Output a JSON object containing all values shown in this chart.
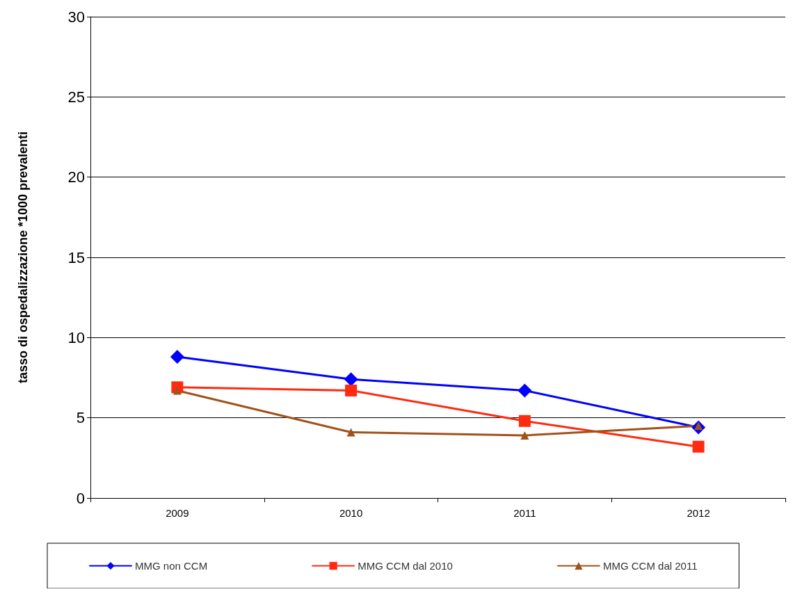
{
  "chart_data": {
    "type": "line",
    "ylabel": "tasso di ospedalizzazione *1000 prevalenti",
    "categories": [
      "2009",
      "2010",
      "2011",
      "2012"
    ],
    "series": [
      {
        "name": "MMG non CCM",
        "color": "#0000ff",
        "marker": "diamond",
        "values": [
          8.8,
          7.4,
          6.7,
          4.4
        ]
      },
      {
        "name": "MMG CCM dal 2010",
        "color": "#ff2a10",
        "marker": "square",
        "values": [
          6.9,
          6.7,
          4.8,
          3.2
        ]
      },
      {
        "name": "MMG CCM dal 2011",
        "color": "#a0521a",
        "marker": "triangle",
        "values": [
          6.7,
          4.1,
          3.9,
          4.5
        ]
      }
    ],
    "ylim": [
      0,
      30
    ],
    "yticks": [
      0,
      5,
      10,
      15,
      20,
      25,
      30
    ],
    "grid": "y",
    "legend": "bottom"
  }
}
